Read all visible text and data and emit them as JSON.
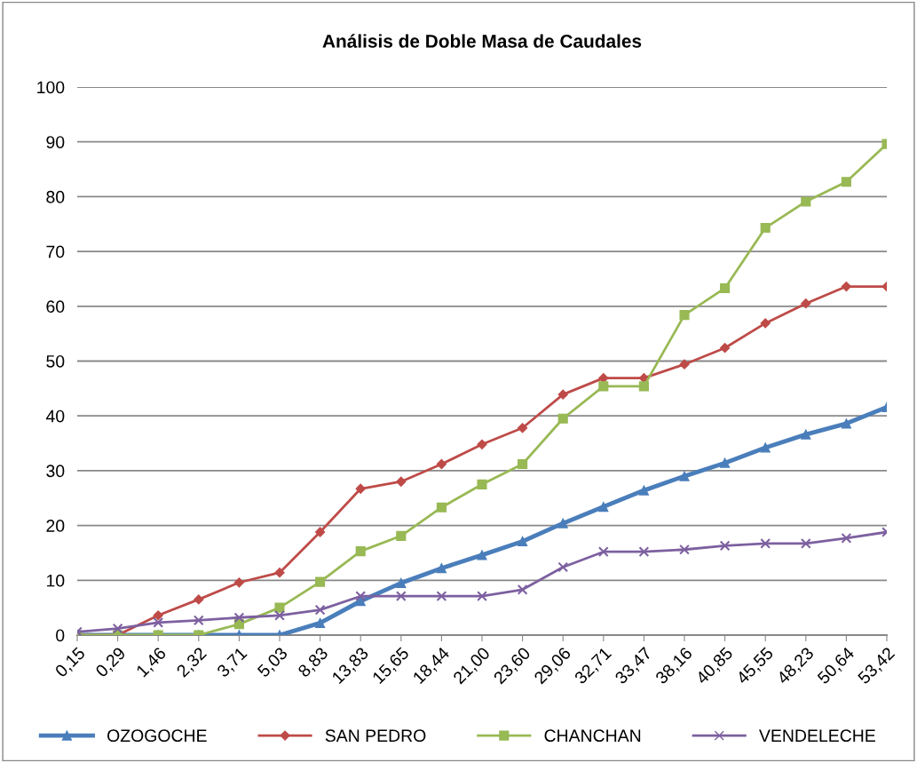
{
  "chart_data": {
    "type": "line",
    "title": "Análisis de Doble Masa de Caudales",
    "categories": [
      "0,15",
      "0,29",
      "1,46",
      "2,32",
      "3,71",
      "5,03",
      "8,83",
      "13,83",
      "15,65",
      "18,44",
      "21,00",
      "23,60",
      "29,06",
      "32,71",
      "33,47",
      "38,16",
      "40,85",
      "45,55",
      "48,23",
      "50,64",
      "53,42"
    ],
    "series": [
      {
        "name": "OZOGOCHE",
        "color": "#4a7ebb",
        "marker": "triangle",
        "values": [
          0,
          0,
          0,
          0,
          0,
          0,
          2.2,
          6.2,
          9.5,
          12.2,
          14.6,
          17.1,
          20.4,
          23.4,
          26.4,
          29.0,
          31.4,
          34.2,
          36.6,
          38.6,
          41.6
        ]
      },
      {
        "name": "SAN PEDRO",
        "color": "#be4b48",
        "marker": "diamond",
        "values": [
          0,
          0,
          3.6,
          6.5,
          9.6,
          11.4,
          18.8,
          26.7,
          28.0,
          31.2,
          34.8,
          37.8,
          43.9,
          46.9,
          46.9,
          49.4,
          52.4,
          56.9,
          60.5,
          63.6,
          63.6
        ]
      },
      {
        "name": "CHANCHAN",
        "color": "#98b954",
        "marker": "square",
        "values": [
          0,
          0,
          0,
          0,
          2.0,
          5.0,
          9.7,
          15.3,
          18.1,
          23.3,
          27.5,
          31.2,
          39.5,
          45.4,
          45.4,
          58.4,
          63.3,
          74.3,
          79.1,
          82.7,
          89.6
        ]
      },
      {
        "name": "VENDELECHE",
        "color": "#7d60a0",
        "marker": "cross",
        "values": [
          0.6,
          1.2,
          2.3,
          2.7,
          3.2,
          3.6,
          4.6,
          7.1,
          7.1,
          7.1,
          7.1,
          8.3,
          12.4,
          15.2,
          15.2,
          15.6,
          16.3,
          16.7,
          16.7,
          17.7,
          18.8
        ]
      }
    ],
    "ylim": [
      0,
      100
    ],
    "yticks": [
      0,
      10,
      20,
      30,
      40,
      50,
      60,
      70,
      80,
      90,
      100
    ],
    "grid": "y",
    "legend": "bottom"
  }
}
